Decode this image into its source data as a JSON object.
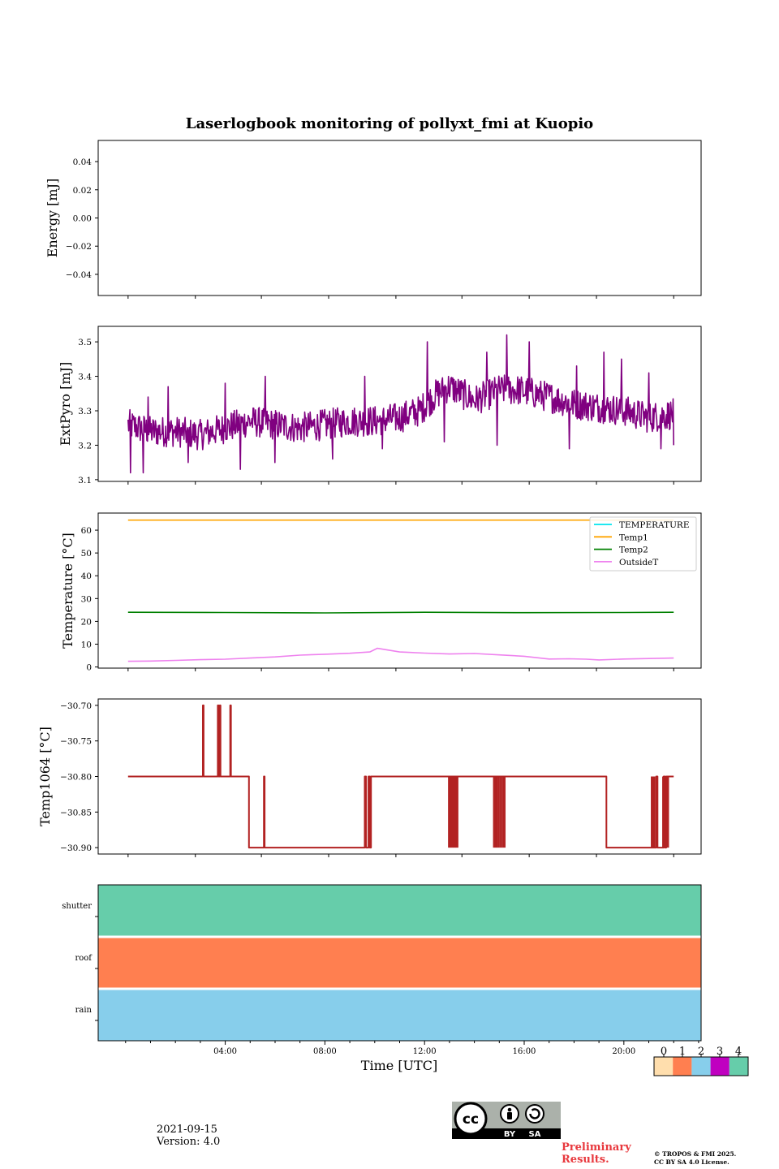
{
  "figure": {
    "title": "Laserlogbook monitoring of pollyxt_fmi at Kuopio",
    "xlabel": "Time [UTC]",
    "date": "2021-09-15",
    "version": "Version: 4.0",
    "preliminary_line1": "Preliminary",
    "preliminary_line2": "Results.",
    "copyright_line1": "© TROPOS & FMI 2025.",
    "copyright_line2": "CC BY SA 4.0 License.",
    "license_badge": {
      "cc": "cc",
      "by": "BY",
      "sa": "SA"
    }
  },
  "chart_data": [
    {
      "id": "energy",
      "type": "line",
      "ylabel": "Energy [mJ]",
      "ylim": [
        -0.055,
        0.055
      ],
      "yticks": [
        -0.04,
        -0.02,
        0.0,
        0.02,
        0.04
      ],
      "ytick_labels": [
        "−0.04",
        "−0.02",
        "0.00",
        "0.02",
        "0.04"
      ],
      "series": []
    },
    {
      "id": "extpyro",
      "type": "line",
      "ylabel": "ExtPyro [mJ]",
      "ylim": [
        3.095,
        3.545
      ],
      "yticks": [
        3.1,
        3.2,
        3.3,
        3.4,
        3.5
      ],
      "ytick_labels": [
        "3.1",
        "3.2",
        "3.3",
        "3.4",
        "3.5"
      ],
      "series": [
        {
          "name": "ExtPyro",
          "color": "#800080",
          "x": [
            0.1,
            1,
            2,
            3,
            4,
            5,
            6,
            7,
            8,
            9,
            10,
            11,
            11.8,
            12.5,
            13,
            14,
            15,
            15.8,
            17,
            18,
            19,
            20,
            21,
            21.9,
            22.0
          ],
          "y": [
            3.26,
            3.24,
            3.24,
            3.23,
            3.25,
            3.27,
            3.26,
            3.25,
            3.26,
            3.27,
            3.27,
            3.28,
            3.3,
            3.35,
            3.37,
            3.33,
            3.36,
            3.36,
            3.34,
            3.32,
            3.31,
            3.3,
            3.28,
            3.29,
            3.29
          ],
          "noise": 0.045,
          "spikes_up": [
            [
              0.9,
              3.34
            ],
            [
              1.7,
              3.37
            ],
            [
              4.0,
              3.38
            ],
            [
              5.6,
              3.4
            ],
            [
              9.6,
              3.4
            ],
            [
              12.1,
              3.5
            ],
            [
              14.5,
              3.47
            ],
            [
              15.3,
              3.52
            ],
            [
              16.2,
              3.5
            ],
            [
              18.1,
              3.43
            ],
            [
              19.2,
              3.47
            ],
            [
              19.9,
              3.45
            ],
            [
              21.0,
              3.41
            ]
          ],
          "spikes_down": [
            [
              0.2,
              3.12
            ],
            [
              0.7,
              3.12
            ],
            [
              2.5,
              3.15
            ],
            [
              4.6,
              3.13
            ],
            [
              6.0,
              3.15
            ],
            [
              8.3,
              3.16
            ],
            [
              10.3,
              3.19
            ],
            [
              12.8,
              3.21
            ],
            [
              14.9,
              3.2
            ],
            [
              17.8,
              3.19
            ],
            [
              21.5,
              3.19
            ],
            [
              22.0,
              3.2
            ]
          ]
        }
      ]
    },
    {
      "id": "temperature",
      "type": "line",
      "ylabel": "Temperature [°C]",
      "ylim": [
        -0.5,
        67.5
      ],
      "yticks": [
        0,
        10,
        20,
        30,
        40,
        50,
        60
      ],
      "ytick_labels": [
        "0",
        "10",
        "20",
        "30",
        "40",
        "50",
        "60"
      ],
      "legend_position": "top-right",
      "series": [
        {
          "name": "TEMPERATURE",
          "color": "#00e5ee",
          "x": [],
          "y": []
        },
        {
          "name": "Temp1",
          "color": "#ffa500",
          "x": [
            0.1,
            22.0
          ],
          "y": [
            64.4,
            64.4
          ]
        },
        {
          "name": "Temp2",
          "color": "#008000",
          "x": [
            0.1,
            4,
            8,
            12,
            16,
            20,
            22.0
          ],
          "y": [
            24.0,
            23.9,
            23.7,
            24.0,
            23.8,
            23.9,
            24.0
          ]
        },
        {
          "name": "OutsideT",
          "color": "#ee82ee",
          "x": [
            0.1,
            1,
            2,
            3,
            4,
            5,
            6,
            7,
            8,
            9,
            9.8,
            10.1,
            11,
            12,
            13,
            14,
            15,
            16,
            17,
            17.8,
            18.5,
            19,
            20,
            21,
            22.0
          ],
          "y": [
            2.5,
            2.6,
            2.9,
            3.2,
            3.4,
            3.9,
            4.4,
            5.2,
            5.6,
            6.0,
            6.6,
            8.2,
            6.6,
            6.1,
            5.7,
            5.9,
            5.3,
            4.7,
            3.5,
            3.6,
            3.4,
            3.1,
            3.5,
            3.7,
            3.9
          ]
        }
      ]
    },
    {
      "id": "temp1064",
      "type": "line",
      "ylabel": "Temp1064 [°C]",
      "ylim": [
        -30.909,
        -30.691
      ],
      "yticks": [
        -30.9,
        -30.85,
        -30.8,
        -30.75,
        -30.7
      ],
      "ytick_labels": [
        "−30.90",
        "−30.85",
        "−30.80",
        "−30.75",
        "−30.70"
      ],
      "series": [
        {
          "name": "Temp1064",
          "color": "#b22222",
          "x": [
            0.1,
            3.1,
            3.1,
            3.13,
            3.13,
            3.7,
            3.7,
            3.73,
            3.73,
            3.78,
            3.78,
            3.81,
            3.81,
            4.2,
            4.2,
            4.23,
            4.23,
            4.95,
            4.95,
            5.55,
            5.55,
            5.58,
            5.58,
            9.6,
            9.6,
            9.65,
            9.65,
            9.75,
            9.75,
            9.8,
            9.8,
            9.85,
            9.85,
            9.9,
            9.9,
            11.0,
            11.0,
            11.8,
            11.8,
            12.5,
            12.5,
            14.7,
            14.7,
            17.0,
            17.0,
            19.2,
            19.2,
            19.3,
            19.3,
            19.6,
            19.6,
            21.3,
            21.3,
            21.35,
            21.35,
            21.6,
            21.6,
            21.65,
            21.65,
            21.7,
            21.7,
            22.0
          ],
          "y": [
            -30.8,
            -30.8,
            -30.7,
            -30.7,
            -30.8,
            -30.8,
            -30.7,
            -30.7,
            -30.8,
            -30.8,
            -30.7,
            -30.7,
            -30.8,
            -30.8,
            -30.7,
            -30.7,
            -30.8,
            -30.8,
            -30.9,
            -30.9,
            -30.8,
            -30.8,
            -30.9,
            -30.9,
            -30.8,
            -30.8,
            -30.9,
            -30.9,
            -30.8,
            -30.8,
            -30.9,
            -30.9,
            -30.8,
            -30.8,
            -30.8,
            -30.8,
            -30.8,
            -30.8,
            -30.8,
            -30.8,
            -30.8,
            -30.8,
            -30.8,
            -30.8,
            -30.8,
            -30.8,
            -30.8,
            -30.8,
            -30.9,
            -30.9,
            -30.9,
            -30.9,
            -30.8,
            -30.8,
            -30.9,
            -30.9,
            -30.8,
            -30.8,
            -30.9,
            -30.9,
            -30.8,
            -30.8
          ],
          "toggle_regions": [
            [
              12.95,
              13.35,
              8
            ],
            [
              14.75,
              15.25,
              8
            ],
            [
              21.1,
              21.25,
              5
            ],
            [
              21.55,
              21.8,
              6
            ]
          ],
          "toggle_values": [
            -30.8,
            -30.9
          ]
        }
      ]
    },
    {
      "id": "status",
      "type": "heatmap",
      "rows": [
        "shutter",
        "roof",
        "rain"
      ],
      "row_values": [
        4,
        1,
        2
      ],
      "colorbar": {
        "ticks": [
          "0",
          "1",
          "2",
          "3",
          "4"
        ],
        "colors": [
          "#ffdead",
          "#ff7f50",
          "#87ceeb",
          "#c000c0",
          "#66cdaa"
        ]
      }
    }
  ],
  "x_axis": {
    "xlim_hours": [
      -1.1,
      23.1
    ],
    "major_ticks_hours": [
      4,
      8,
      12,
      16,
      20
    ],
    "major_tick_labels": [
      "04:00",
      "08:00",
      "12:00",
      "16:00",
      "20:00"
    ],
    "minor_ticks_hours": [
      0.1,
      2.8,
      5.45,
      8.15,
      10.85,
      13.5,
      16.2,
      18.9,
      22.0
    ],
    "panel_minor_ticks_hours": [
      0,
      1,
      2,
      3,
      5,
      6,
      7,
      9,
      10,
      11,
      13,
      14,
      15,
      17,
      18,
      19,
      21,
      22,
      23
    ]
  }
}
